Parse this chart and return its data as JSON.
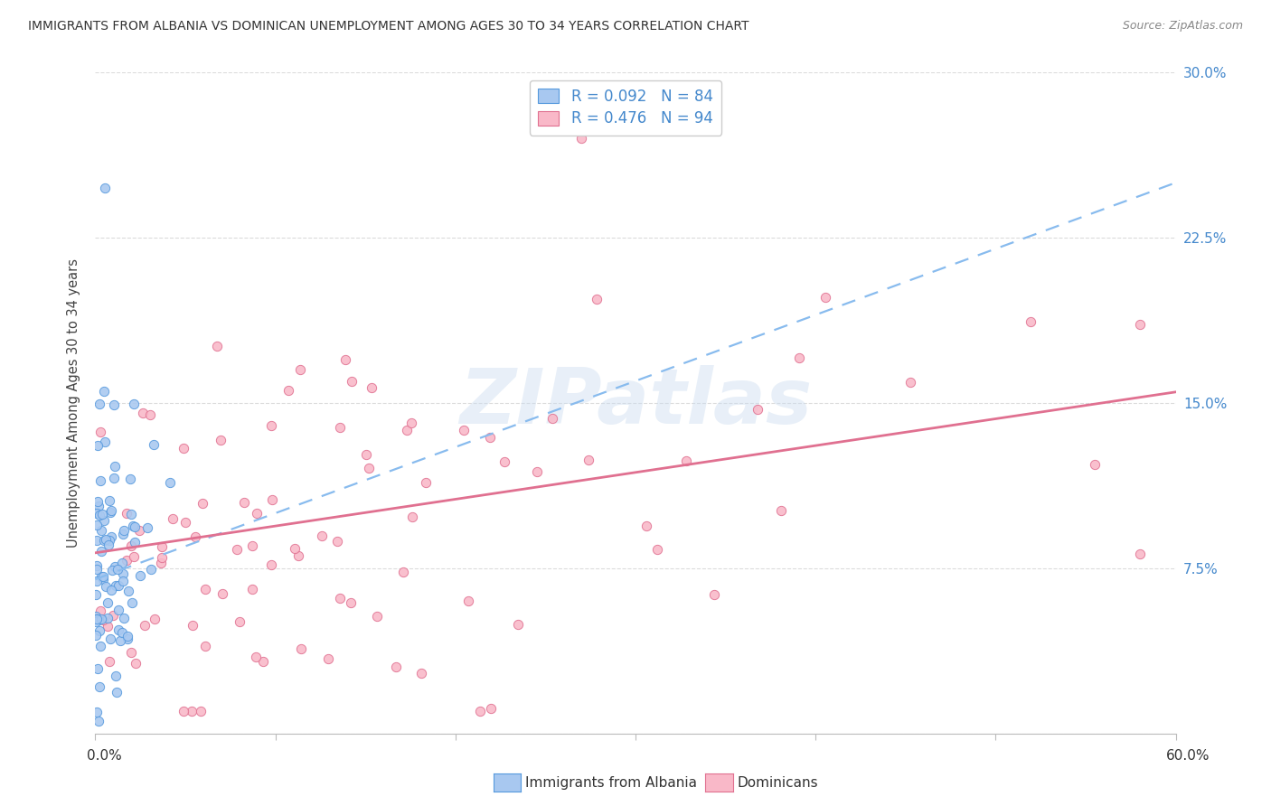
{
  "title": "IMMIGRANTS FROM ALBANIA VS DOMINICAN UNEMPLOYMENT AMONG AGES 30 TO 34 YEARS CORRELATION CHART",
  "source": "Source: ZipAtlas.com",
  "ylabel": "Unemployment Among Ages 30 to 34 years",
  "xlim": [
    0.0,
    0.6
  ],
  "ylim": [
    0.0,
    0.3
  ],
  "ytick_vals": [
    0.0,
    0.075,
    0.15,
    0.225,
    0.3
  ],
  "ytick_labels_right": [
    "",
    "7.5%",
    "15.0%",
    "22.5%",
    "30.0%"
  ],
  "albania_color": "#a8c8f0",
  "albania_edge_color": "#5599dd",
  "dominican_color": "#f9b8c8",
  "dominican_edge_color": "#e07090",
  "trendline_albania_color": "#88bbee",
  "trendline_dominican_color": "#e07090",
  "albania_R": 0.092,
  "albania_N": 84,
  "dominican_R": 0.476,
  "dominican_N": 94,
  "watermark_text": "ZIPatlas",
  "legend_label_albania": "Immigrants from Albania",
  "legend_label_dominican": "Dominicans",
  "right_tick_color": "#4488cc",
  "grid_color": "#cccccc",
  "title_color": "#333333",
  "source_color": "#888888"
}
